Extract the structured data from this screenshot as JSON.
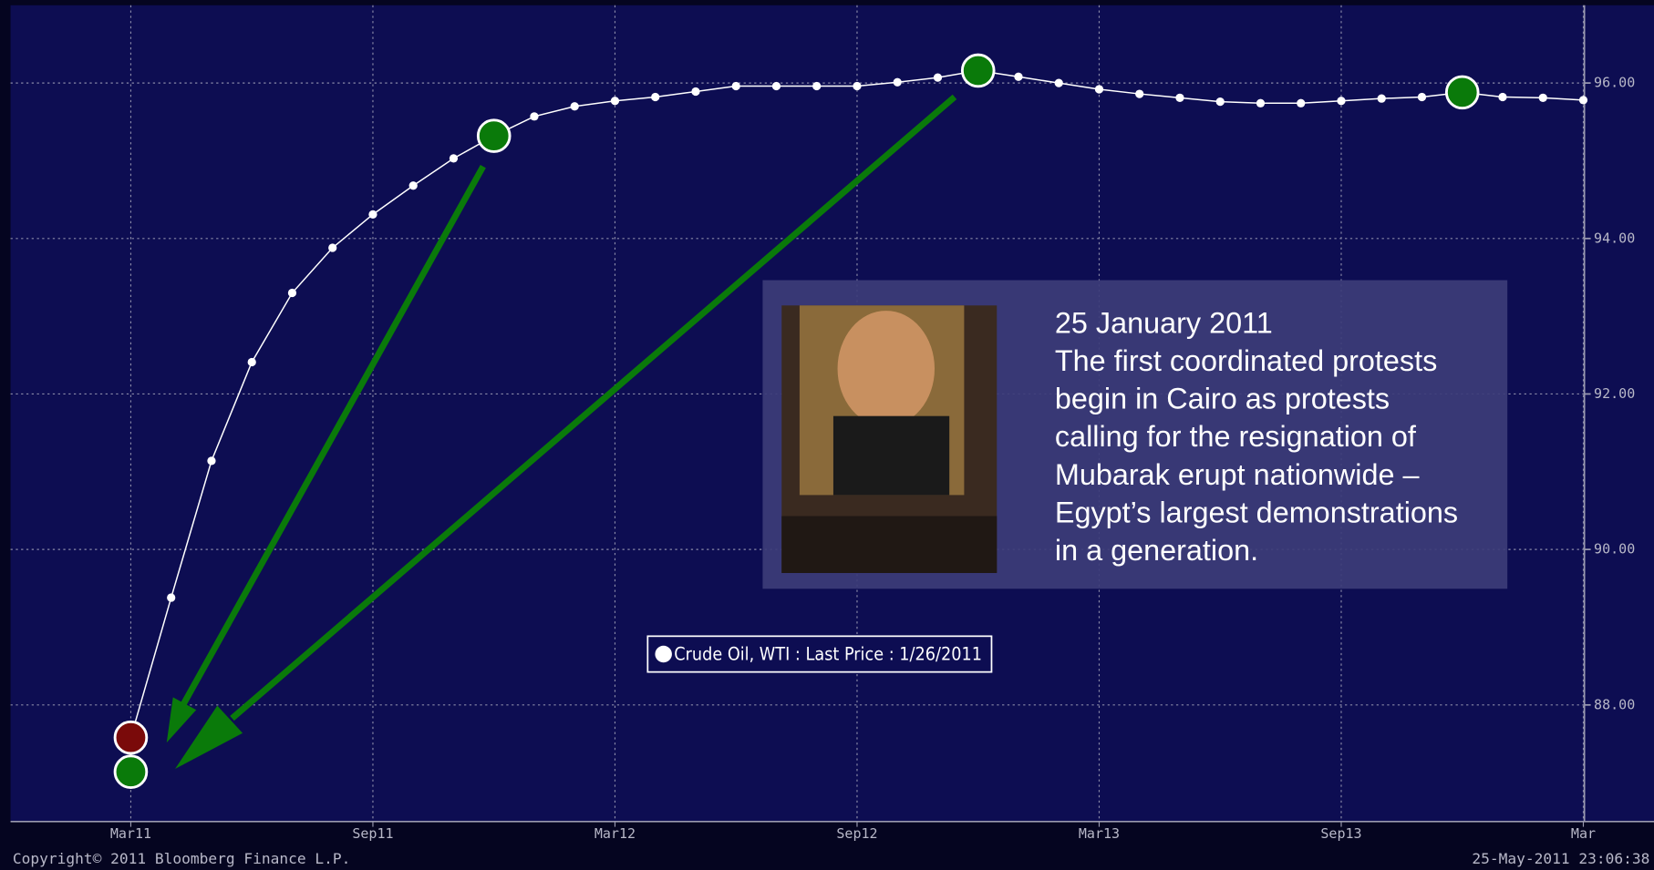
{
  "chart_data": {
    "type": "line",
    "categories": [
      "Mar11",
      null,
      null,
      null,
      null,
      null,
      "Sep11",
      null,
      null,
      null,
      null,
      null,
      "Mar12",
      null,
      null,
      null,
      null,
      null,
      "Sep12",
      null,
      null,
      null,
      null,
      null,
      "Mar13",
      null,
      null,
      null,
      null,
      null,
      "Sep13",
      null,
      null,
      null,
      null,
      null,
      "Mar"
    ],
    "series": [
      {
        "name": "Crude Oil, WTI : Last Price : 1/26/2011",
        "color": "#ffffff",
        "values": [
          87.58,
          89.38,
          91.14,
          92.41,
          93.3,
          93.88,
          94.31,
          94.68,
          95.03,
          95.32,
          95.57,
          95.7,
          95.77,
          95.82,
          95.89,
          95.96,
          95.96,
          95.96,
          95.96,
          96.01,
          96.07,
          96.16,
          96.08,
          96.0,
          95.92,
          95.86,
          95.81,
          95.76,
          95.74,
          95.74,
          95.77,
          95.8,
          95.82,
          95.88,
          95.82,
          95.81,
          95.78
        ]
      },
      {
        "color": "#0a7a0a",
        "values": [
          87.14,
          null,
          null,
          null,
          null,
          null,
          null,
          null,
          null,
          95.32,
          null,
          null,
          null,
          null,
          null,
          null,
          null,
          null,
          null,
          null,
          null,
          96.16,
          null,
          null,
          null,
          null,
          null,
          null,
          null,
          null,
          null,
          null,
          null,
          95.88,
          null,
          null,
          null
        ]
      }
    ],
    "first_point_color": "#7a0a0a",
    "ylim": [
      86.5,
      97.0
    ],
    "yticks": [
      {
        "value": 88,
        "label": "88.00"
      },
      {
        "value": 90,
        "label": "90.00"
      },
      {
        "value": 92,
        "label": "92.00"
      },
      {
        "value": 94,
        "label": "94.00"
      },
      {
        "value": 96,
        "label": "96.00"
      }
    ],
    "grid": true,
    "annotation": [
      "25 January 2011",
      "The first coordinated protests",
      "begin in Cairo as protests",
      "calling for the resignation of",
      "Mubarak erupt nationwide –",
      "Egypt’s largest demonstrations",
      "in a generation."
    ],
    "copyright": "Copyright© 2011 Bloomberg Finance L.P.",
    "timestamp": "25-May-2011 23:06:38"
  }
}
